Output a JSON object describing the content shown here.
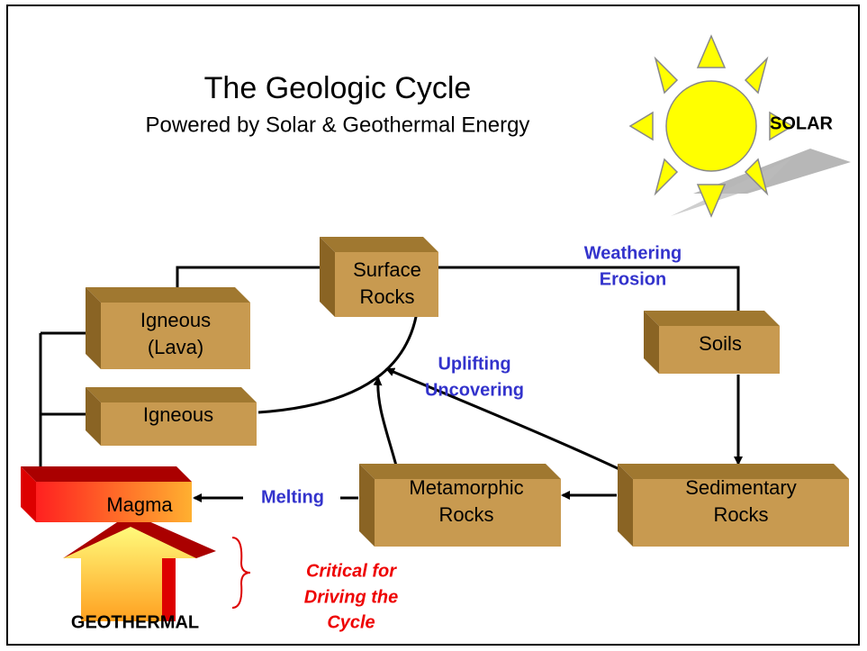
{
  "title": "The Geologic Cycle",
  "subtitle": "Powered by Solar & Geothermal Energy",
  "solar_label": "SOLAR",
  "geothermal_label": "GEOTHERMAL",
  "note": [
    "Critical for",
    "Driving the",
    "Cycle"
  ],
  "nodes": [
    {
      "lines": [
        "Surface",
        "Rocks"
      ]
    },
    {
      "lines": [
        "Igneous",
        "(Lava)"
      ]
    },
    {
      "lines": [
        "Igneous"
      ]
    },
    {
      "lines": [
        "Soils"
      ]
    },
    {
      "lines": [
        "Metamorphic",
        "Rocks"
      ]
    },
    {
      "lines": [
        "Sedimentary",
        "Rocks"
      ]
    },
    {
      "lines": [
        "Magma"
      ]
    }
  ],
  "processes": [
    {
      "lines": [
        "Weathering",
        "Erosion"
      ]
    },
    {
      "lines": [
        "Uplifting",
        "Uncovering"
      ]
    },
    {
      "lines": [
        "Melting"
      ]
    }
  ]
}
